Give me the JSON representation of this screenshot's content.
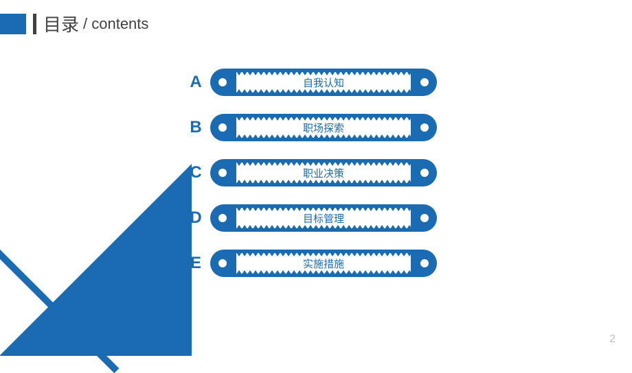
{
  "colors": {
    "primary": "#1b6bb3",
    "primary_dark": "#155a99",
    "text_dark": "#404040",
    "text_light": "#bfbfbf",
    "white": "#ffffff"
  },
  "header": {
    "title_cn": "目录",
    "title_en": "/ contents"
  },
  "toc": {
    "items": [
      {
        "letter": "A",
        "label": "自我认知"
      },
      {
        "letter": "B",
        "label": "职场探索"
      },
      {
        "letter": "C",
        "label": "职业决策"
      },
      {
        "letter": "D",
        "label": "目标管理"
      },
      {
        "letter": "E",
        "label": "实施措施"
      }
    ]
  },
  "page_number": "2",
  "style": {
    "title_cn_fontsize": 26,
    "title_en_fontsize": 22,
    "letter_fontsize": 24,
    "label_fontsize": 15,
    "pill_width": 330,
    "pill_height": 40,
    "pill_radius": 20,
    "row_gap": 26
  }
}
